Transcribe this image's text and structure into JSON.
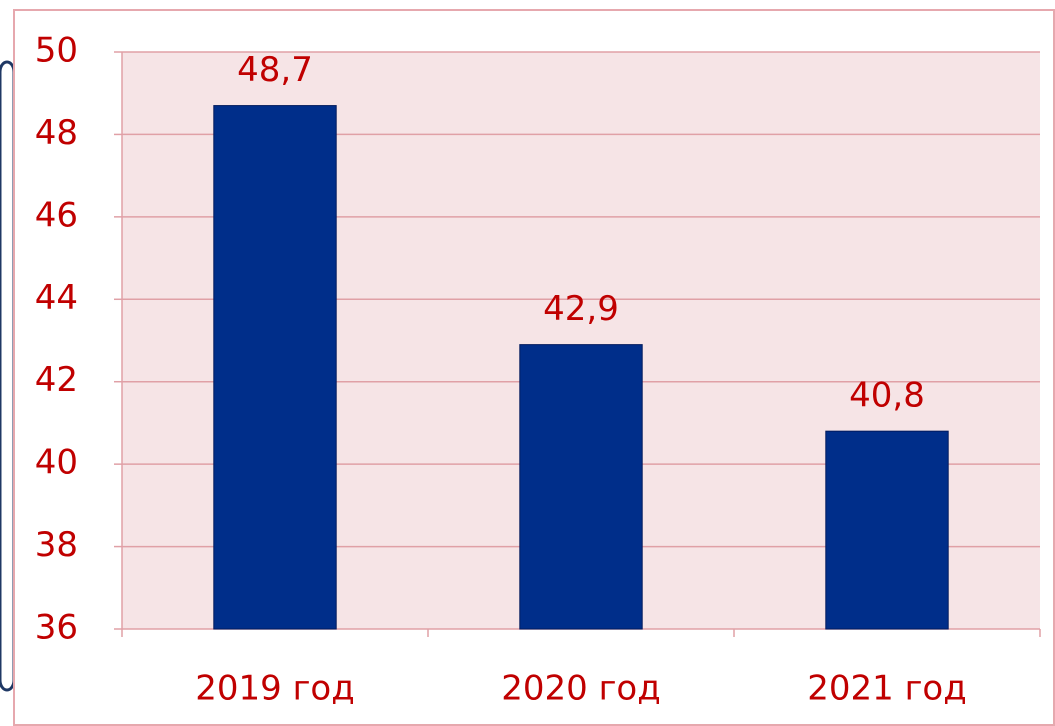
{
  "chart_data": {
    "type": "bar",
    "categories": [
      "2019 год",
      "2020 год",
      "2021 год"
    ],
    "values": [
      48.7,
      42.9,
      40.8
    ],
    "value_labels": [
      "48,7",
      "42,9",
      "40,8"
    ],
    "color": "#002e8a",
    "ylim": [
      36,
      50
    ],
    "yticks": [
      36,
      38,
      40,
      42,
      44,
      46,
      48,
      50
    ],
    "grid": true
  }
}
